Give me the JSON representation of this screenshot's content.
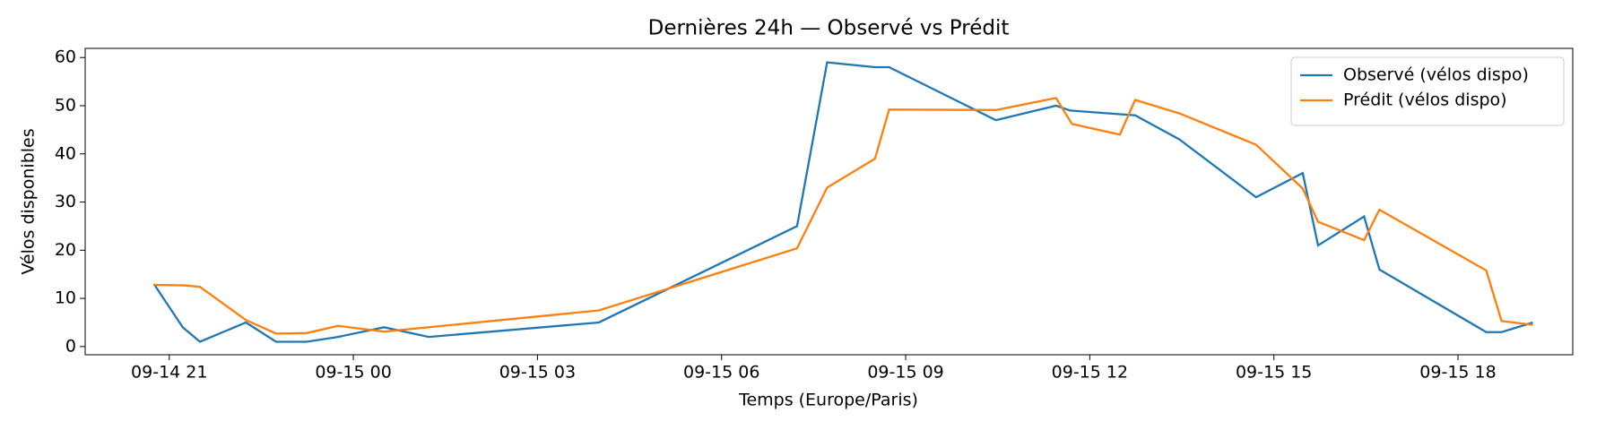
{
  "chart_data": {
    "type": "line",
    "title": "Dernières 24h — Observé vs Prédit",
    "x_label": "Temps (Europe/Paris)",
    "y_label": "Vélos disponibles",
    "xlim": [
      19.63,
      43.87
    ],
    "ylim": [
      -1.7,
      61.9
    ],
    "xticks": [
      {
        "value": 21,
        "label": "09-14 21"
      },
      {
        "value": 24,
        "label": "09-15 00"
      },
      {
        "value": 27,
        "label": "09-15 03"
      },
      {
        "value": 30,
        "label": "09-15 06"
      },
      {
        "value": 33,
        "label": "09-15 09"
      },
      {
        "value": 36,
        "label": "09-15 12"
      },
      {
        "value": 39,
        "label": "09-15 15"
      },
      {
        "value": 42,
        "label": "09-15 18"
      }
    ],
    "yticks": [
      0,
      10,
      20,
      30,
      40,
      50,
      60
    ],
    "grid": false,
    "legend": "upper right",
    "series": [
      {
        "name": "Observé (vélos dispo)",
        "color": "#1f77b4",
        "x": [
          20.75,
          21.22,
          21.5,
          22.25,
          22.74,
          23.24,
          23.75,
          24.5,
          25.23,
          28.0,
          31.23,
          31.72,
          32.5,
          32.73,
          34.47,
          35.45,
          35.68,
          36.74,
          37.46,
          38.71,
          39.47,
          39.72,
          40.47,
          40.72,
          42.46,
          42.71,
          43.22
        ],
        "values": [
          13,
          4,
          1,
          5,
          1,
          1,
          2,
          4,
          2,
          5,
          25,
          59,
          58,
          58,
          47,
          50,
          49,
          48,
          43,
          31,
          36,
          21,
          27,
          16,
          3,
          3,
          5
        ]
      },
      {
        "name": "Prédit (vélos dispo)",
        "color": "#ff7f0e",
        "x": [
          20.75,
          21.25,
          21.5,
          22.25,
          22.74,
          23.24,
          23.75,
          24.5,
          28.0,
          31.23,
          31.72,
          32.5,
          32.73,
          34.47,
          35.45,
          35.71,
          36.49,
          36.74,
          37.46,
          38.71,
          39.47,
          39.72,
          40.47,
          40.72,
          42.46,
          42.71,
          43.22
        ],
        "values": [
          12.8,
          12.7,
          12.4,
          5.5,
          2.7,
          2.8,
          4.3,
          3.1,
          7.5,
          20.4,
          33,
          39,
          49.2,
          49.1,
          51.6,
          46.2,
          44,
          51.2,
          48.4,
          41.9,
          32.8,
          25.9,
          22.1,
          28.4,
          15.8,
          5.3,
          4.5
        ]
      }
    ]
  }
}
